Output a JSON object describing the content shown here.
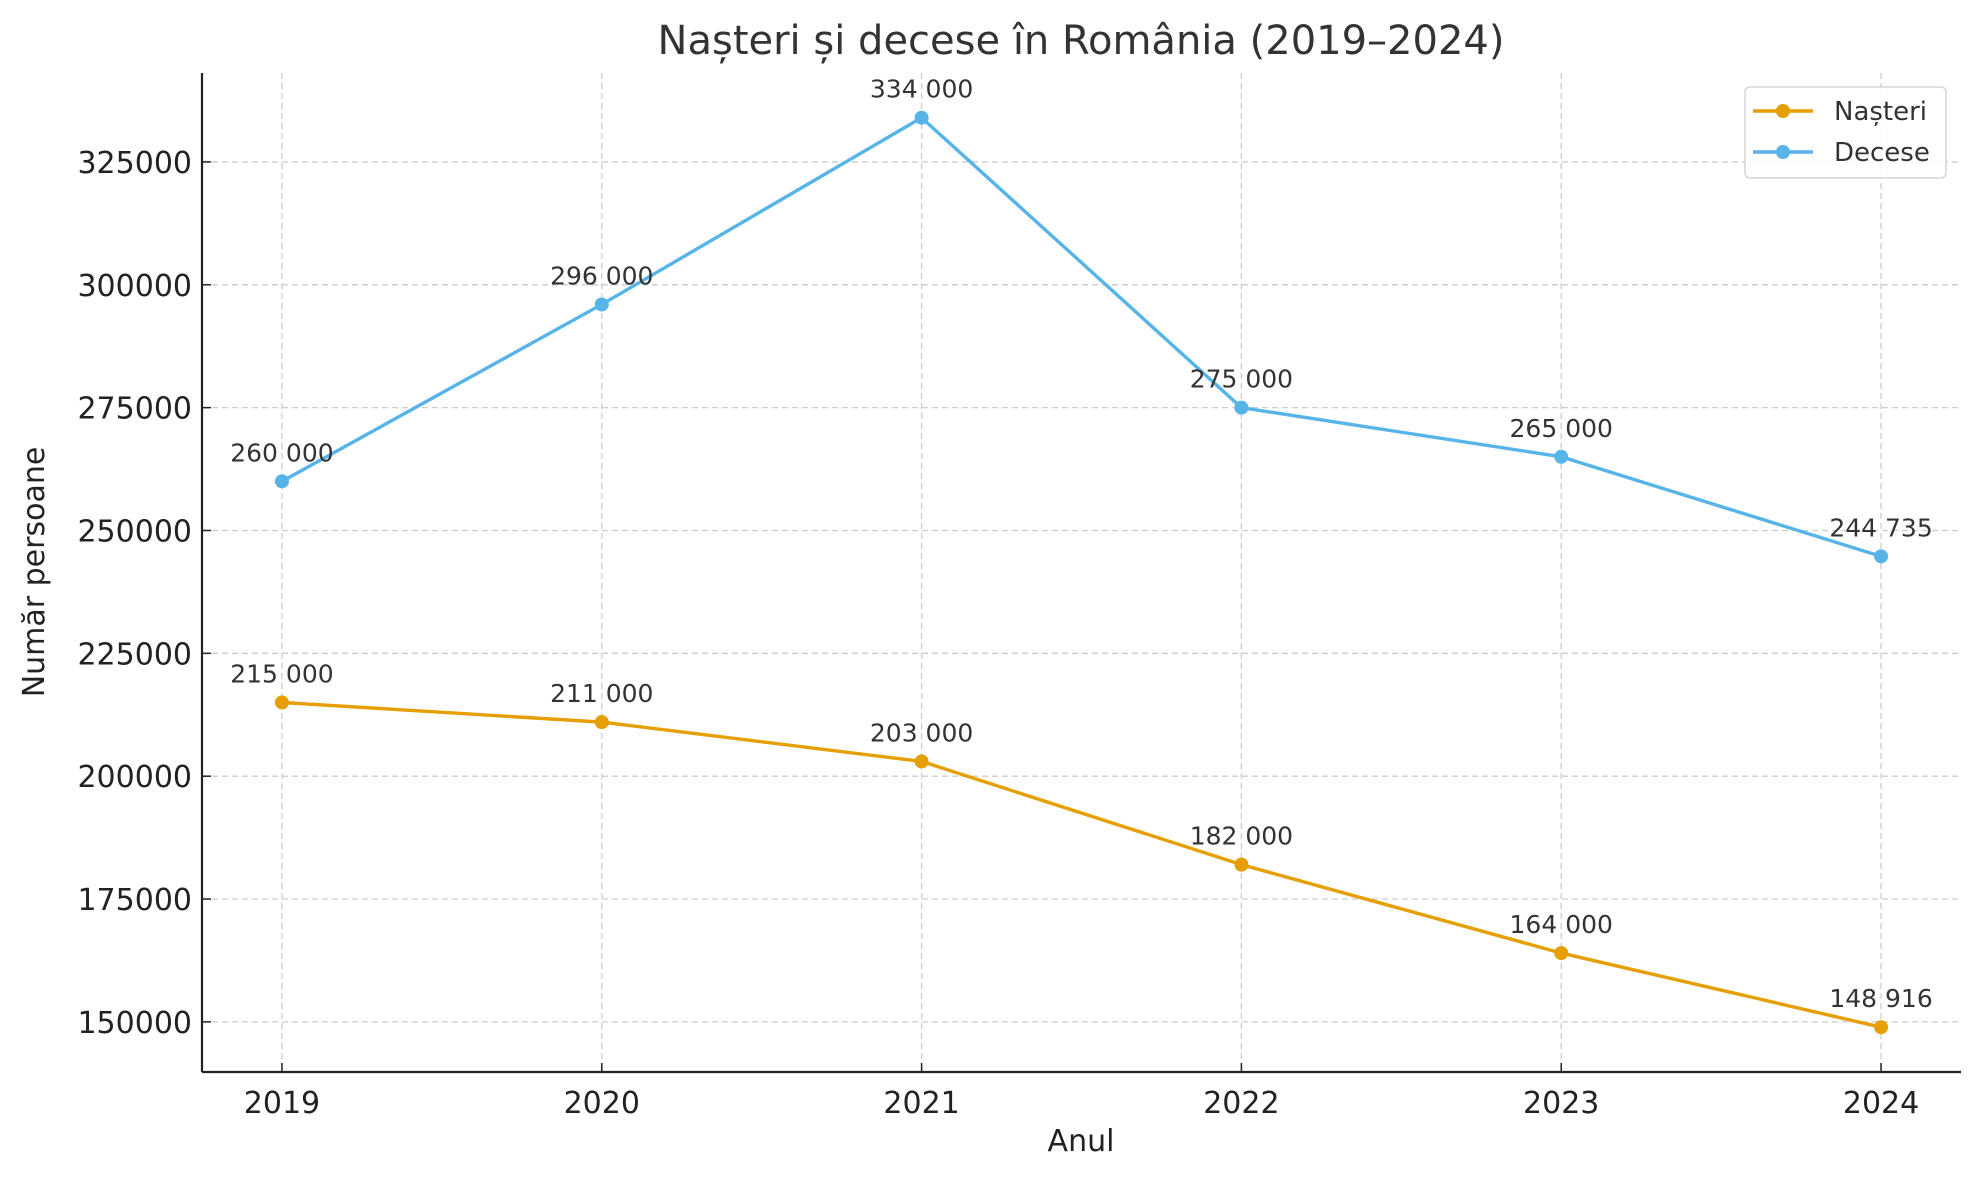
{
  "chart_data": {
    "type": "line",
    "title": "Nașteri și decese în România (2019–2024)",
    "xlabel": "Anul",
    "ylabel": "Număr persoane",
    "x": [
      2019,
      2020,
      2021,
      2022,
      2023,
      2024
    ],
    "x_tick_labels": [
      "2019",
      "2020",
      "2021",
      "2022",
      "2023",
      "2024"
    ],
    "y_ticks": [
      150000,
      175000,
      200000,
      225000,
      250000,
      275000,
      300000,
      325000
    ],
    "y_tick_labels": [
      "150000",
      "175000",
      "200000",
      "225000",
      "250000",
      "275000",
      "300000",
      "325000"
    ],
    "ylim": [
      139800,
      343100
    ],
    "grid": true,
    "legend_position": "top-right",
    "series": [
      {
        "name": "Nașteri",
        "color": "#E69F00",
        "values": [
          215000,
          211000,
          203000,
          182000,
          164000,
          148916
        ],
        "labels": [
          "215 000",
          "211 000",
          "203 000",
          "182 000",
          "164 000",
          "148 916"
        ]
      },
      {
        "name": "Decese",
        "color": "#56B4E9",
        "values": [
          260000,
          296000,
          334000,
          275000,
          265000,
          244735
        ],
        "labels": [
          "260 000",
          "296 000",
          "334 000",
          "275 000",
          "265 000",
          "244 735"
        ]
      }
    ]
  }
}
